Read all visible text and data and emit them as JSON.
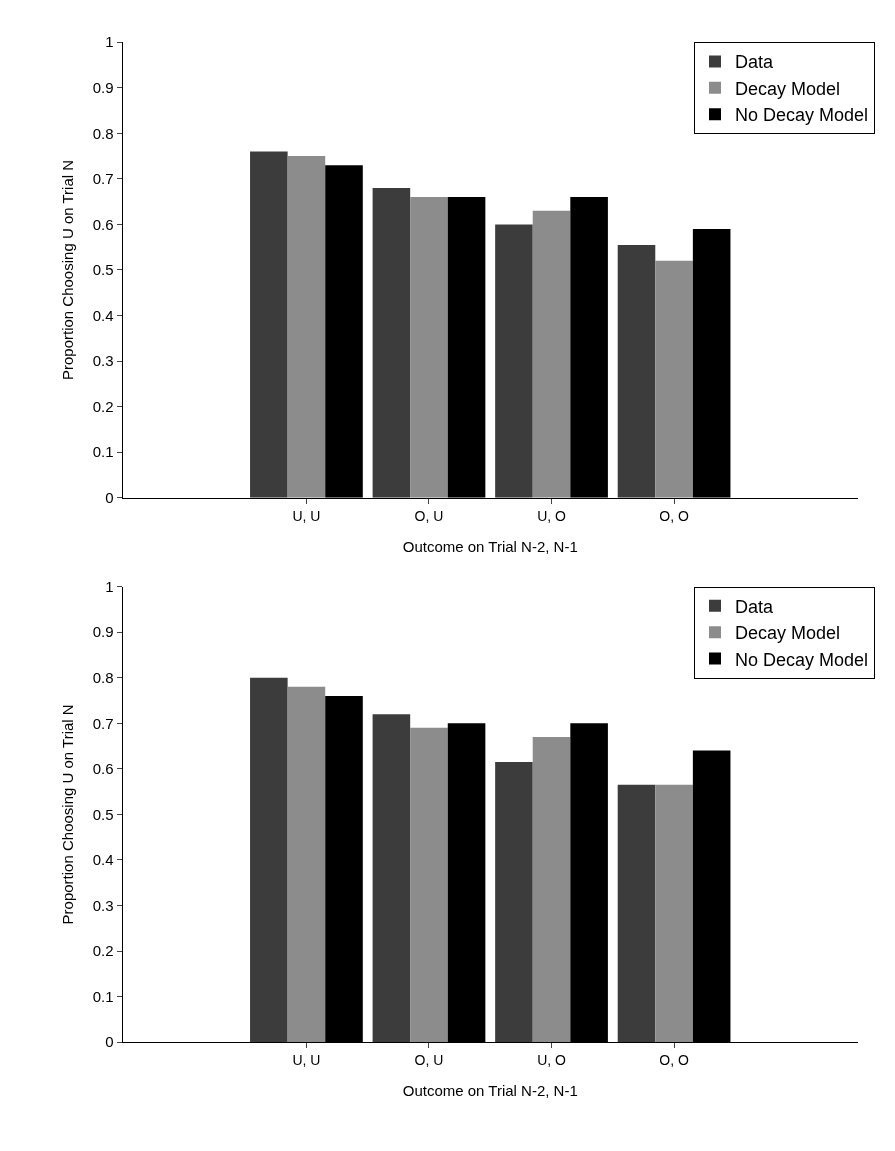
{
  "chart_data": [
    {
      "type": "bar",
      "xlabel": "Outcome on Trial N-2, N-1",
      "ylabel": "Proportion Choosing U on Trial N",
      "categories": [
        null,
        "U, U",
        "O, U",
        "U, O",
        "O, O",
        null
      ],
      "series": [
        {
          "name": "Data",
          "color": "#3c3c3c",
          "values": [
            null,
            0.76,
            0.68,
            0.6,
            0.555,
            null
          ]
        },
        {
          "name": "Decay Model",
          "color": "#8c8c8c",
          "values": [
            null,
            0.75,
            0.66,
            0.63,
            0.52,
            null
          ]
        },
        {
          "name": "No Decay Model",
          "color": "#000000",
          "values": [
            null,
            0.73,
            0.66,
            0.66,
            0.59,
            null
          ]
        }
      ],
      "ylim": [
        0,
        1
      ],
      "yticks": [
        0,
        0.1,
        0.2,
        0.3,
        0.4,
        0.5,
        0.6,
        0.7,
        0.8,
        0.9,
        1
      ],
      "legend": "top right"
    },
    {
      "type": "bar",
      "xlabel": "Outcome on Trial N-2, N-1",
      "ylabel": "Proportion Choosing U on Trial N",
      "categories": [
        null,
        "U, U",
        "O, U",
        "U, O",
        "O, O",
        null
      ],
      "series": [
        {
          "name": "Data",
          "color": "#3c3c3c",
          "values": [
            null,
            0.8,
            0.72,
            0.615,
            0.565,
            null
          ]
        },
        {
          "name": "Decay Model",
          "color": "#8c8c8c",
          "values": [
            null,
            0.78,
            0.69,
            0.67,
            0.565,
            null
          ]
        },
        {
          "name": "No Decay Model",
          "color": "#000000",
          "values": [
            null,
            0.76,
            0.7,
            0.7,
            0.64,
            null
          ]
        }
      ],
      "ylim": [
        0,
        1
      ],
      "yticks": [
        0,
        0.1,
        0.2,
        0.3,
        0.4,
        0.5,
        0.6,
        0.7,
        0.8,
        0.9,
        1
      ],
      "legend": "top right"
    }
  ]
}
